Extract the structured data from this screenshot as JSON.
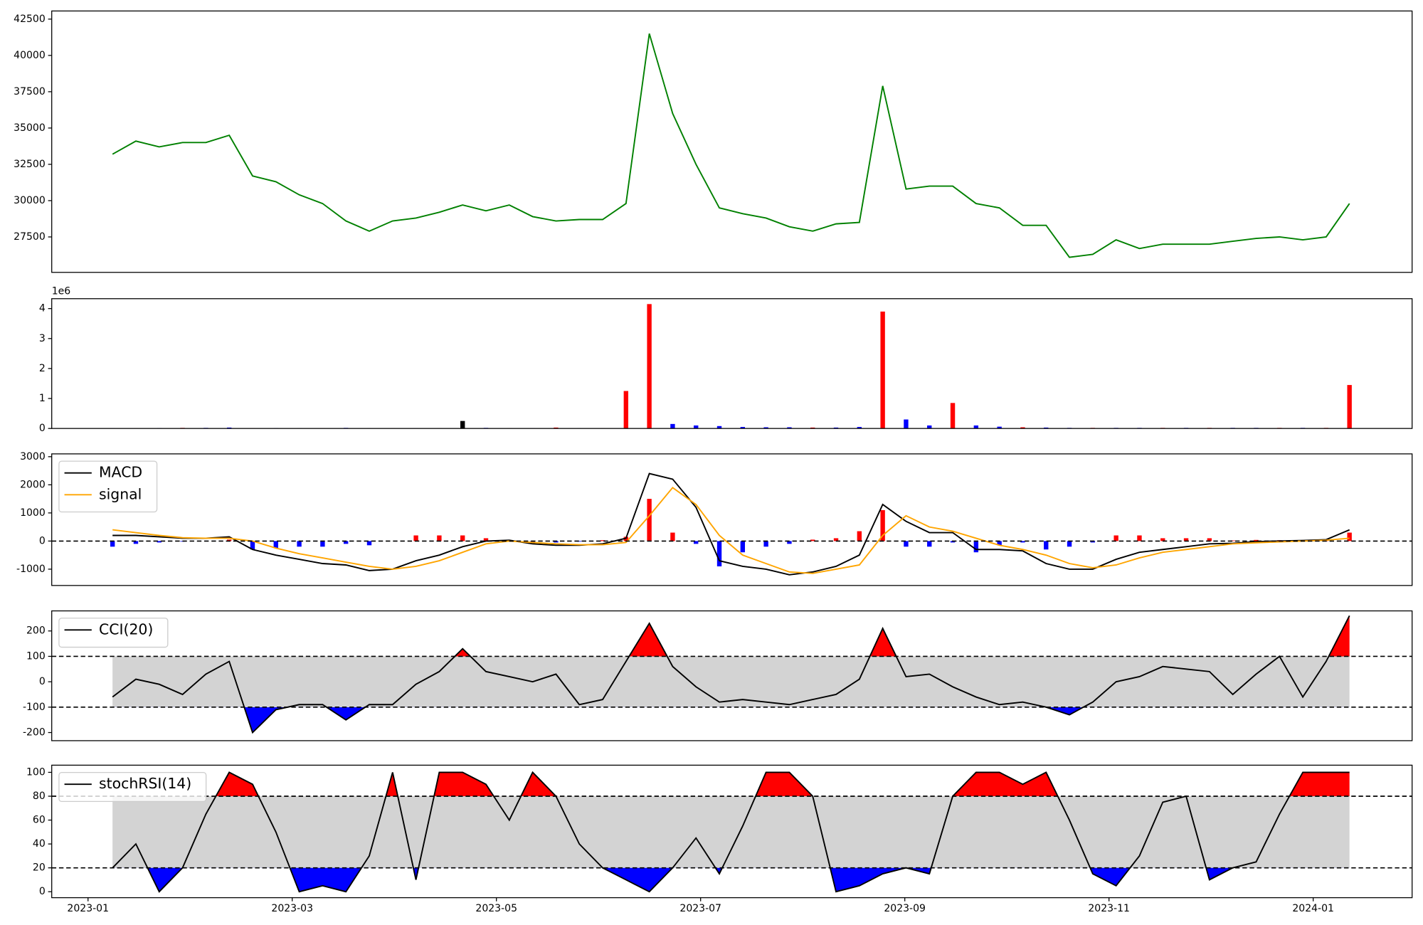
{
  "chart_data": [
    {
      "type": "line",
      "color": "green",
      "values": [
        33200,
        34100,
        33700,
        34000,
        34000,
        34500,
        31700,
        31300,
        30400,
        29800,
        28600,
        27900,
        28600,
        28800,
        29200,
        29700,
        29300,
        29700,
        28900,
        28600,
        28700,
        28700,
        29800,
        41500,
        36000,
        32500,
        29500,
        29100,
        28800,
        28200,
        27900,
        28400,
        28500,
        37900,
        30800,
        31000,
        31000,
        29800,
        29500,
        28300,
        28300,
        26100,
        26300,
        27300,
        26700,
        27000,
        27000,
        27000,
        27200,
        27400,
        27500,
        27300,
        27500,
        29800
      ],
      "ylim": [
        25060,
        43060
      ],
      "yticks": [
        27500,
        30000,
        32500,
        35000,
        37500,
        40000,
        42500
      ]
    },
    {
      "type": "bar",
      "offset_label": "1e6",
      "values": [
        10000,
        10000,
        15000,
        20000,
        20000,
        30000,
        10000,
        15000,
        10000,
        10000,
        20000,
        10000,
        10000,
        10000,
        10000,
        250000,
        20000,
        10000,
        10000,
        30000,
        10000,
        10000,
        1250000,
        4150000,
        150000,
        100000,
        80000,
        50000,
        40000,
        40000,
        30000,
        30000,
        50000,
        3900000,
        300000,
        100000,
        850000,
        100000,
        60000,
        40000,
        30000,
        20000,
        20000,
        20000,
        20000,
        20000,
        20000,
        20000,
        20000,
        20000,
        20000,
        20000,
        20000,
        1450000
      ],
      "colors": [
        "blue",
        "red",
        "blue",
        "red",
        "blue",
        "blue",
        "red",
        "blue",
        "blue",
        "red",
        "blue",
        "blue",
        "red",
        "blue",
        "red",
        "black",
        "blue",
        "red",
        "blue",
        "red",
        "blue",
        "red",
        "red",
        "red",
        "blue",
        "blue",
        "blue",
        "blue",
        "blue",
        "blue",
        "red",
        "blue",
        "blue",
        "red",
        "blue",
        "blue",
        "red",
        "blue",
        "blue",
        "red",
        "blue",
        "blue",
        "red",
        "blue",
        "blue",
        "red",
        "blue",
        "red",
        "blue",
        "blue",
        "red",
        "blue",
        "red",
        "red"
      ],
      "ylim": [
        0,
        4330000
      ],
      "yticks": [
        {
          "value": 0,
          "label": "0"
        },
        {
          "value": 1000000,
          "label": "1"
        },
        {
          "value": 2000000,
          "label": "2"
        },
        {
          "value": 3000000,
          "label": "3"
        },
        {
          "value": 4000000,
          "label": "4"
        }
      ]
    },
    {
      "type": "line",
      "hlines": [
        0
      ],
      "series": [
        {
          "name": "MACD",
          "color": "black",
          "values": [
            200,
            200,
            150,
            100,
            100,
            150,
            -300,
            -500,
            -650,
            -800,
            -850,
            -1050,
            -1000,
            -700,
            -500,
            -200,
            0,
            30,
            -100,
            -150,
            -150,
            -100,
            100,
            2400,
            2200,
            1200,
            -700,
            -900,
            -1000,
            -1200,
            -1100,
            -900,
            -500,
            1300,
            700,
            300,
            300,
            -300,
            -300,
            -350,
            -800,
            -1000,
            -1000,
            -650,
            -400,
            -300,
            -200,
            -100,
            -80,
            -20,
            0,
            20,
            50,
            400
          ]
        },
        {
          "name": "signal",
          "color": "orange",
          "values": [
            400,
            300,
            200,
            120,
            100,
            100,
            0,
            -250,
            -450,
            -600,
            -750,
            -900,
            -1000,
            -900,
            -700,
            -400,
            -100,
            0,
            -50,
            -100,
            -130,
            -130,
            -50,
            900,
            1900,
            1300,
            200,
            -500,
            -800,
            -1100,
            -1150,
            -1000,
            -850,
            200,
            900,
            500,
            350,
            100,
            -150,
            -300,
            -500,
            -800,
            -950,
            -850,
            -600,
            -400,
            -300,
            -200,
            -100,
            -60,
            -30,
            0,
            30,
            100
          ]
        }
      ],
      "histogram": {
        "up_color": "red",
        "down_color": "blue",
        "values": [
          -200,
          -100,
          -50,
          -20,
          0,
          50,
          -300,
          -250,
          -200,
          -200,
          -100,
          -150,
          0,
          200,
          200,
          200,
          100,
          30,
          -50,
          -50,
          -20,
          30,
          150,
          1500,
          300,
          -100,
          -900,
          -400,
          -200,
          -100,
          50,
          100,
          350,
          1100,
          -200,
          -200,
          -50,
          -400,
          -150,
          -50,
          -300,
          -200,
          -50,
          200,
          200,
          100,
          100,
          100,
          20,
          40,
          30,
          20,
          20,
          300
        ]
      },
      "ylim": [
        -1580,
        3100
      ],
      "yticks": [
        -1000,
        0,
        1000,
        2000,
        3000
      ]
    },
    {
      "type": "line",
      "hlines": [
        100,
        -100
      ],
      "band_color": "lightgray",
      "above_color": "red",
      "below_color": "blue",
      "series": [
        {
          "name": "CCI(20)",
          "color": "black",
          "values": [
            -60,
            10,
            -10,
            -50,
            30,
            80,
            -200,
            -110,
            -90,
            -90,
            -150,
            -90,
            -90,
            -10,
            40,
            130,
            40,
            20,
            0,
            30,
            -90,
            -70,
            80,
            230,
            60,
            -20,
            -80,
            -70,
            -80,
            -90,
            -70,
            -50,
            10,
            210,
            20,
            30,
            -20,
            -60,
            -90,
            -80,
            -100,
            -130,
            -80,
            0,
            20,
            60,
            50,
            40,
            -50,
            30,
            100,
            -60,
            80,
            260
          ]
        }
      ],
      "ylim": [
        -232,
        279
      ],
      "yticks": [
        -200,
        -100,
        0,
        100,
        200
      ]
    },
    {
      "type": "line",
      "hlines": [
        80,
        20
      ],
      "band_color": "lightgray",
      "above_color": "red",
      "below_color": "blue",
      "series": [
        {
          "name": "stochRSI(14)",
          "color": "black",
          "values": [
            20,
            40,
            0,
            20,
            65,
            100,
            90,
            50,
            0,
            5,
            0,
            30,
            100,
            10,
            100,
            100,
            90,
            60,
            100,
            80,
            40,
            20,
            10,
            0,
            20,
            45,
            15,
            55,
            100,
            100,
            80,
            0,
            5,
            15,
            20,
            15,
            80,
            100,
            100,
            90,
            100,
            60,
            15,
            5,
            30,
            75,
            80,
            10,
            20,
            25,
            65,
            100,
            100,
            100
          ]
        }
      ],
      "ylim": [
        -5,
        106
      ],
      "yticks": [
        0,
        20,
        40,
        60,
        80,
        100
      ],
      "xticks": [
        "2023-01",
        "2023-03",
        "2023-05",
        "2023-07",
        "2023-09",
        "2023-11",
        "2024-01"
      ]
    }
  ]
}
